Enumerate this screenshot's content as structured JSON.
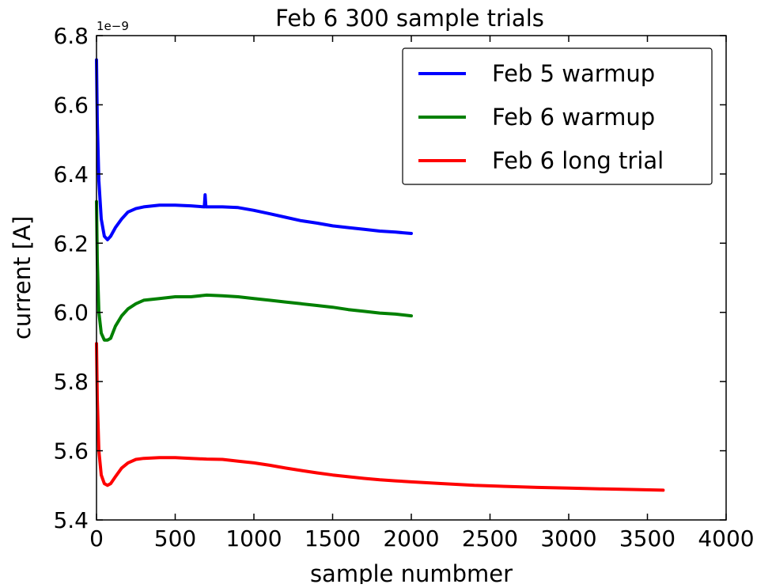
{
  "chart_data": {
    "type": "line",
    "title": "Feb 6 300 sample trials",
    "xlabel": "sample numbmer",
    "ylabel": "current [A]",
    "y_scale_exponent": "1e−9",
    "xlim": [
      0,
      4000
    ],
    "ylim": [
      5.4,
      6.8
    ],
    "x_ticks": [
      0,
      500,
      1000,
      1500,
      2000,
      2500,
      3000,
      3500,
      4000
    ],
    "x_tick_labels": [
      "0",
      "500",
      "1000",
      "1500",
      "2000",
      "2500",
      "3000",
      "3500",
      "4000"
    ],
    "y_ticks": [
      5.4,
      5.6,
      5.8,
      6.0,
      6.2,
      6.4,
      6.6,
      6.8
    ],
    "y_tick_labels": [
      "5.4",
      "5.6",
      "5.8",
      "6.0",
      "6.2",
      "6.4",
      "6.6",
      "6.8"
    ],
    "grid": false,
    "legend_position": "top-right",
    "series": [
      {
        "name": "Feb 5 warmup",
        "color": "#0000ff",
        "x": [
          0,
          5,
          15,
          30,
          50,
          70,
          90,
          120,
          160,
          200,
          250,
          300,
          400,
          500,
          600,
          685,
          690,
          695,
          700,
          800,
          900,
          1000,
          1100,
          1200,
          1300,
          1400,
          1500,
          1600,
          1700,
          1800,
          1900,
          2000
        ],
        "y": [
          6.73,
          6.55,
          6.38,
          6.27,
          6.22,
          6.21,
          6.22,
          6.245,
          6.27,
          6.29,
          6.3,
          6.305,
          6.31,
          6.31,
          6.308,
          6.305,
          6.34,
          6.305,
          6.305,
          6.305,
          6.303,
          6.295,
          6.285,
          6.275,
          6.265,
          6.258,
          6.25,
          6.245,
          6.24,
          6.235,
          6.232,
          6.228
        ]
      },
      {
        "name": "Feb 6 warmup",
        "color": "#008000",
        "x": [
          0,
          5,
          15,
          30,
          50,
          70,
          90,
          120,
          160,
          200,
          250,
          300,
          400,
          500,
          600,
          700,
          800,
          900,
          1000,
          1100,
          1200,
          1300,
          1400,
          1500,
          1600,
          1700,
          1800,
          1900,
          2000
        ],
        "y": [
          6.32,
          6.15,
          6.0,
          5.94,
          5.92,
          5.92,
          5.925,
          5.96,
          5.99,
          6.01,
          6.025,
          6.035,
          6.04,
          6.045,
          6.045,
          6.05,
          6.048,
          6.045,
          6.04,
          6.035,
          6.03,
          6.025,
          6.02,
          6.015,
          6.008,
          6.003,
          5.998,
          5.995,
          5.99
        ]
      },
      {
        "name": "Feb 6 long trial",
        "color": "#ff0000",
        "x": [
          0,
          5,
          15,
          30,
          50,
          70,
          90,
          120,
          160,
          200,
          250,
          300,
          400,
          500,
          600,
          700,
          800,
          900,
          1000,
          1100,
          1200,
          1300,
          1400,
          1500,
          1600,
          1700,
          1800,
          1900,
          2000,
          2200,
          2400,
          2600,
          2800,
          3000,
          3200,
          3400,
          3600
        ],
        "y": [
          5.91,
          5.75,
          5.6,
          5.53,
          5.505,
          5.5,
          5.505,
          5.525,
          5.55,
          5.565,
          5.575,
          5.578,
          5.58,
          5.58,
          5.578,
          5.576,
          5.575,
          5.57,
          5.565,
          5.558,
          5.55,
          5.543,
          5.536,
          5.53,
          5.525,
          5.52,
          5.516,
          5.513,
          5.51,
          5.505,
          5.5,
          5.497,
          5.494,
          5.492,
          5.49,
          5.488,
          5.486
        ]
      }
    ]
  }
}
